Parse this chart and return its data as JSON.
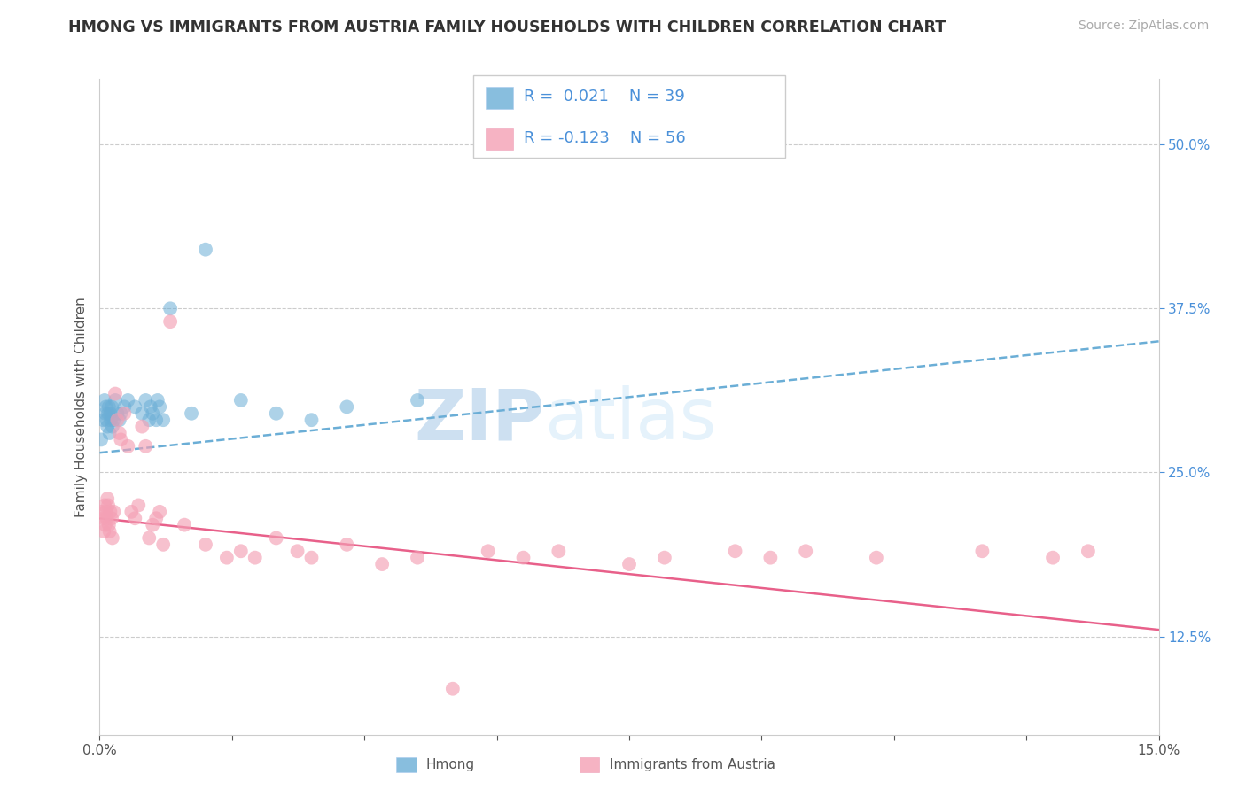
{
  "title": "HMONG VS IMMIGRANTS FROM AUSTRIA FAMILY HOUSEHOLDS WITH CHILDREN CORRELATION CHART",
  "source": "Source: ZipAtlas.com",
  "ylabel": "Family Households with Children",
  "xlim": [
    0.0,
    15.0
  ],
  "ylim": [
    5.0,
    55.0
  ],
  "y_ticks_right": [
    12.5,
    25.0,
    37.5,
    50.0
  ],
  "y_tick_labels_right": [
    "12.5%",
    "25.0%",
    "37.5%",
    "50.0%"
  ],
  "hmong_color": "#6baed6",
  "austria_color": "#f4a0b5",
  "hmong_line_color": "#6baed6",
  "austria_line_color": "#e8608a",
  "hmong_R": 0.021,
  "hmong_N": 39,
  "austria_R": -0.123,
  "austria_N": 56,
  "watermark_zip": "ZIP",
  "watermark_atlas": "atlas",
  "legend_label_1": "Hmong",
  "legend_label_2": "Immigrants from Austria",
  "hmong_x": [
    0.02,
    0.05,
    0.07,
    0.08,
    0.09,
    0.1,
    0.11,
    0.12,
    0.13,
    0.14,
    0.15,
    0.16,
    0.17,
    0.18,
    0.2,
    0.22,
    0.25,
    0.28,
    0.3,
    0.35,
    0.4,
    0.5,
    0.6,
    0.65,
    0.7,
    0.72,
    0.75,
    0.8,
    0.82,
    0.85,
    0.9,
    1.0,
    1.3,
    1.5,
    2.0,
    2.5,
    3.0,
    3.5,
    4.5
  ],
  "hmong_y": [
    27.5,
    29.0,
    30.5,
    29.5,
    30.0,
    29.0,
    28.5,
    29.5,
    30.0,
    28.0,
    29.5,
    29.0,
    30.0,
    28.5,
    29.0,
    30.5,
    29.5,
    29.0,
    29.5,
    30.0,
    30.5,
    30.0,
    29.5,
    30.5,
    29.0,
    30.0,
    29.5,
    29.0,
    30.5,
    30.0,
    29.0,
    37.5,
    29.5,
    42.0,
    30.5,
    29.5,
    29.0,
    30.0,
    30.5
  ],
  "austria_x": [
    0.03,
    0.05,
    0.06,
    0.07,
    0.08,
    0.09,
    0.1,
    0.11,
    0.12,
    0.13,
    0.14,
    0.15,
    0.17,
    0.18,
    0.2,
    0.22,
    0.25,
    0.28,
    0.3,
    0.35,
    0.4,
    0.45,
    0.5,
    0.55,
    0.6,
    0.65,
    0.7,
    0.75,
    0.8,
    0.85,
    0.9,
    1.0,
    1.2,
    1.5,
    1.8,
    2.0,
    2.2,
    2.5,
    2.8,
    3.0,
    3.5,
    4.0,
    4.5,
    5.0,
    5.5,
    6.0,
    6.5,
    7.5,
    8.0,
    9.0,
    9.5,
    10.0,
    11.0,
    12.5,
    13.5,
    14.0
  ],
  "austria_y": [
    22.0,
    21.5,
    20.5,
    22.5,
    21.0,
    22.0,
    21.5,
    23.0,
    22.5,
    21.0,
    20.5,
    22.0,
    21.5,
    20.0,
    22.0,
    31.0,
    29.0,
    28.0,
    27.5,
    29.5,
    27.0,
    22.0,
    21.5,
    22.5,
    28.5,
    27.0,
    20.0,
    21.0,
    21.5,
    22.0,
    19.5,
    36.5,
    21.0,
    19.5,
    18.5,
    19.0,
    18.5,
    20.0,
    19.0,
    18.5,
    19.5,
    18.0,
    18.5,
    8.5,
    19.0,
    18.5,
    19.0,
    18.0,
    18.5,
    19.0,
    18.5,
    19.0,
    18.5,
    19.0,
    18.5,
    19.0
  ]
}
